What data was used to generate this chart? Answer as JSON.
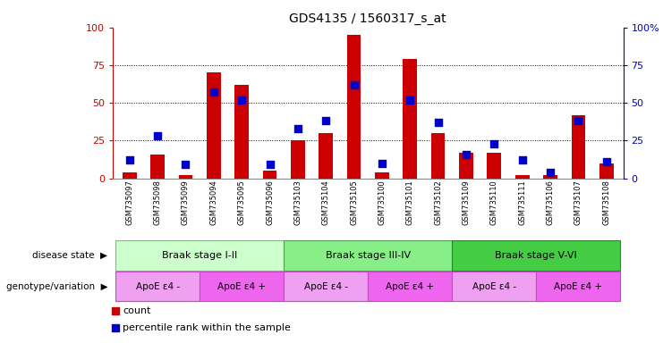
{
  "title": "GDS4135 / 1560317_s_at",
  "samples": [
    "GSM735097",
    "GSM735098",
    "GSM735099",
    "GSM735094",
    "GSM735095",
    "GSM735096",
    "GSM735103",
    "GSM735104",
    "GSM735105",
    "GSM735100",
    "GSM735101",
    "GSM735102",
    "GSM735109",
    "GSM735110",
    "GSM735111",
    "GSM735106",
    "GSM735107",
    "GSM735108"
  ],
  "count_values": [
    4,
    16,
    2,
    70,
    62,
    5,
    25,
    30,
    95,
    4,
    79,
    30,
    17,
    17,
    2,
    2,
    42,
    10
  ],
  "percentile_values": [
    12,
    28,
    9,
    57,
    52,
    9,
    33,
    38,
    62,
    10,
    52,
    37,
    16,
    23,
    12,
    4,
    38,
    11
  ],
  "bar_color": "#cc0000",
  "dot_color": "#0000cc",
  "ylim": [
    0,
    100
  ],
  "yticks": [
    0,
    25,
    50,
    75,
    100
  ],
  "disease_state_groups": [
    {
      "label": "Braak stage I-II",
      "start": 0,
      "end": 6,
      "color": "#ccffcc",
      "border": "#66cc66"
    },
    {
      "label": "Braak stage III-IV",
      "start": 6,
      "end": 12,
      "color": "#88ee88",
      "border": "#44aa44"
    },
    {
      "label": "Braak stage V-VI",
      "start": 12,
      "end": 18,
      "color": "#44cc44",
      "border": "#228822"
    }
  ],
  "genotype_groups": [
    {
      "label": "ApoE ε4 -",
      "start": 0,
      "end": 3,
      "color": "#f0a0f0",
      "border": "#cc44cc"
    },
    {
      "label": "ApoE ε4 +",
      "start": 3,
      "end": 6,
      "color": "#ee66ee",
      "border": "#cc44cc"
    },
    {
      "label": "ApoE ε4 -",
      "start": 6,
      "end": 9,
      "color": "#f0a0f0",
      "border": "#cc44cc"
    },
    {
      "label": "ApoE ε4 +",
      "start": 9,
      "end": 12,
      "color": "#ee66ee",
      "border": "#cc44cc"
    },
    {
      "label": "ApoE ε4 -",
      "start": 12,
      "end": 15,
      "color": "#f0a0f0",
      "border": "#cc44cc"
    },
    {
      "label": "ApoE ε4 +",
      "start": 15,
      "end": 18,
      "color": "#ee66ee",
      "border": "#cc44cc"
    }
  ],
  "left_axis_color": "#cc0000",
  "right_axis_color": "#0000cc",
  "bar_width": 0.5
}
